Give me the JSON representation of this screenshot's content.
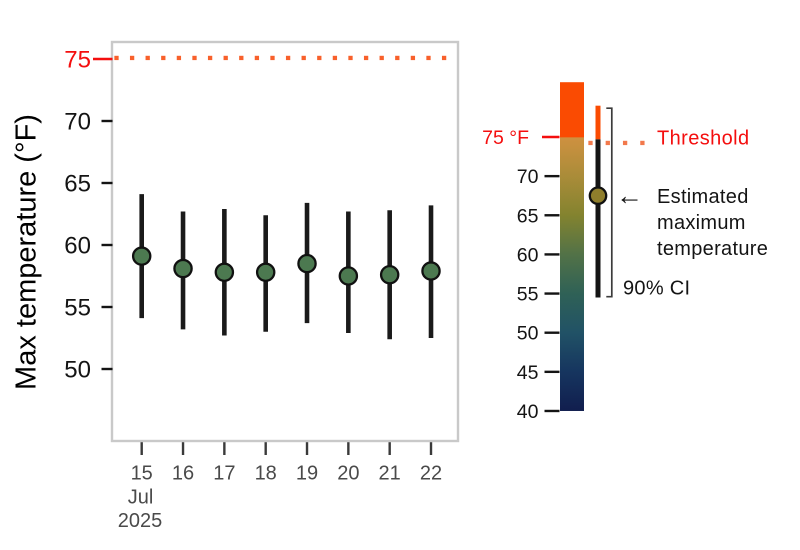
{
  "chart_data": {
    "type": "scatter",
    "subtype": "pointrange-with-threshold",
    "title": "",
    "xlabel": "",
    "ylabel": "Max temperature (°F)",
    "x_tick_labels": [
      "15",
      "16",
      "17",
      "18",
      "19",
      "20",
      "21",
      "22"
    ],
    "x_axis_month_label": "Jul",
    "x_axis_year_label": "2025",
    "y_ticks": [
      50,
      55,
      60,
      65,
      70
    ],
    "threshold_value": 75,
    "threshold_tick_label": "75",
    "ylim": [
      44,
      76.5
    ],
    "grid": false,
    "series": [
      {
        "name": "Estimated maximum temperature",
        "ci_level": "90%",
        "estimates": [
          59.1,
          58.1,
          57.8,
          57.8,
          58.5,
          57.5,
          57.6,
          57.9
        ],
        "ci_low": [
          54.1,
          53.2,
          52.7,
          53.0,
          53.7,
          52.9,
          52.4,
          52.5
        ],
        "ci_high": [
          64.1,
          62.7,
          62.9,
          62.4,
          63.4,
          62.7,
          62.8,
          63.2
        ]
      }
    ]
  },
  "legend": {
    "colorbar": {
      "tick_labels": [
        "75 °F",
        "70",
        "65",
        "60",
        "55",
        "50",
        "45",
        "40"
      ],
      "tick_temps": [
        75,
        70,
        65,
        60,
        55,
        50,
        45,
        40
      ],
      "top_temp": 82,
      "bottom_temp": 40,
      "gradient_stops": [
        {
          "temp": 82,
          "color": "#FA4B02"
        },
        {
          "temp": 75,
          "color": "#FA4B02"
        },
        {
          "temp": 74.9,
          "color": "#CE9140"
        },
        {
          "temp": 70,
          "color": "#AA8C39"
        },
        {
          "temp": 65,
          "color": "#83832F"
        },
        {
          "temp": 60,
          "color": "#527247"
        },
        {
          "temp": 55,
          "color": "#2F6156"
        },
        {
          "temp": 50,
          "color": "#215266"
        },
        {
          "temp": 45,
          "color": "#16355F"
        },
        {
          "temp": 40,
          "color": "#111E4E"
        }
      ]
    },
    "threshold_label": "Threshold",
    "estimate_label_lines": [
      "Estimated",
      "maximum",
      "temperature"
    ],
    "ci_label": "90% CI",
    "arrow_icon": "←",
    "example": {
      "estimate": 67.5,
      "ci_low": 54.5,
      "ci_high": 79
    }
  },
  "colors": {
    "red_text": "#F40E0E",
    "threshold_dots_main": "#F8602B",
    "threshold_dots_legend": "#F2794C",
    "hot_orange": "#FA4B02",
    "point_fill_green": "#4C7950",
    "legend_point_fill_olive": "#8F7E2C",
    "errorbar_black": "#1A1A1A",
    "panel_border_gray": "#C9C9C9",
    "axis_text_gray": "#4A4A4A",
    "axis_text_black": "#141414"
  }
}
